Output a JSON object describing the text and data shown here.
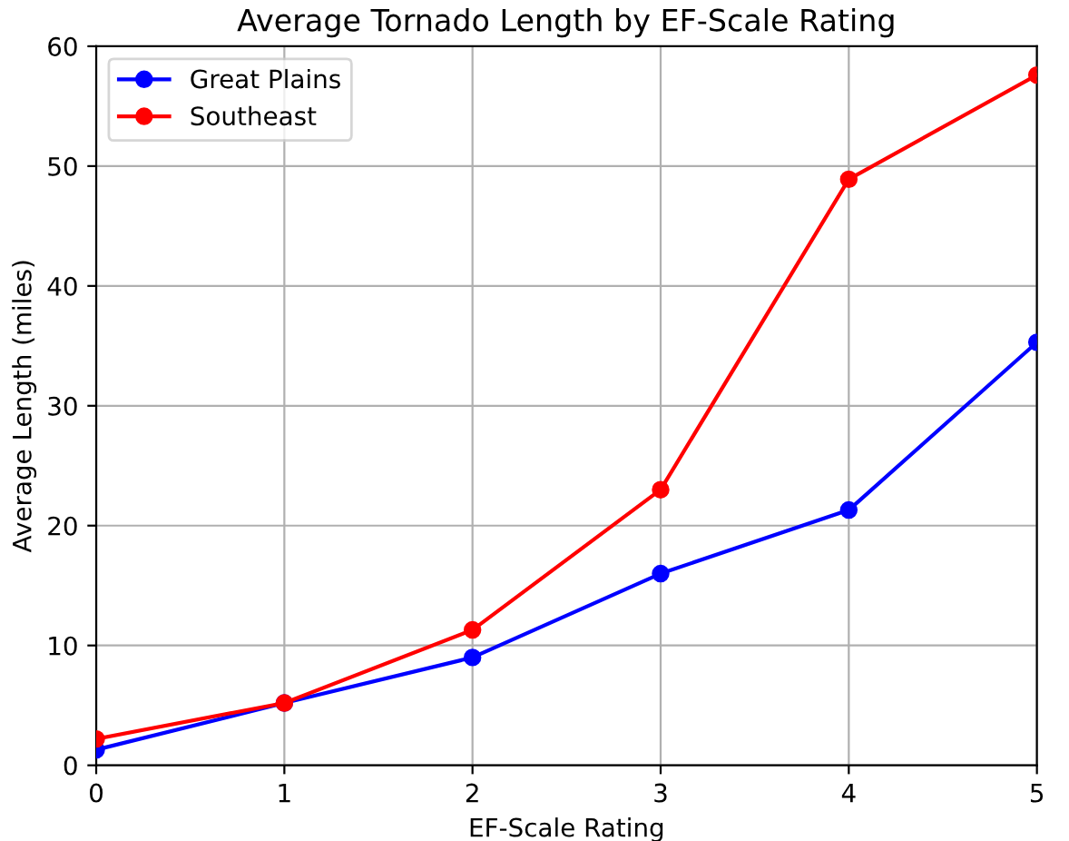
{
  "chart_data": {
    "type": "line",
    "title": "Average Tornado Length by EF-Scale Rating",
    "xlabel": "EF-Scale Rating",
    "ylabel": "Average Length (miles)",
    "x": [
      0,
      1,
      2,
      3,
      4,
      5
    ],
    "series": [
      {
        "name": "Great Plains",
        "color": "#0000ff",
        "values": [
          1.3,
          5.2,
          9.0,
          16.0,
          21.3,
          35.3
        ]
      },
      {
        "name": "Southeast",
        "color": "#ff0000",
        "values": [
          2.2,
          5.2,
          11.3,
          23.0,
          48.9,
          57.6
        ]
      }
    ],
    "xlim": [
      0,
      5
    ],
    "xticks": [
      0,
      1,
      2,
      3,
      4,
      5
    ],
    "ylim": [
      0,
      60
    ],
    "yticks": [
      0,
      10,
      20,
      30,
      40,
      50,
      60
    ],
    "grid": true,
    "legend": "top left",
    "marker": "circle",
    "line_style": "solid"
  }
}
